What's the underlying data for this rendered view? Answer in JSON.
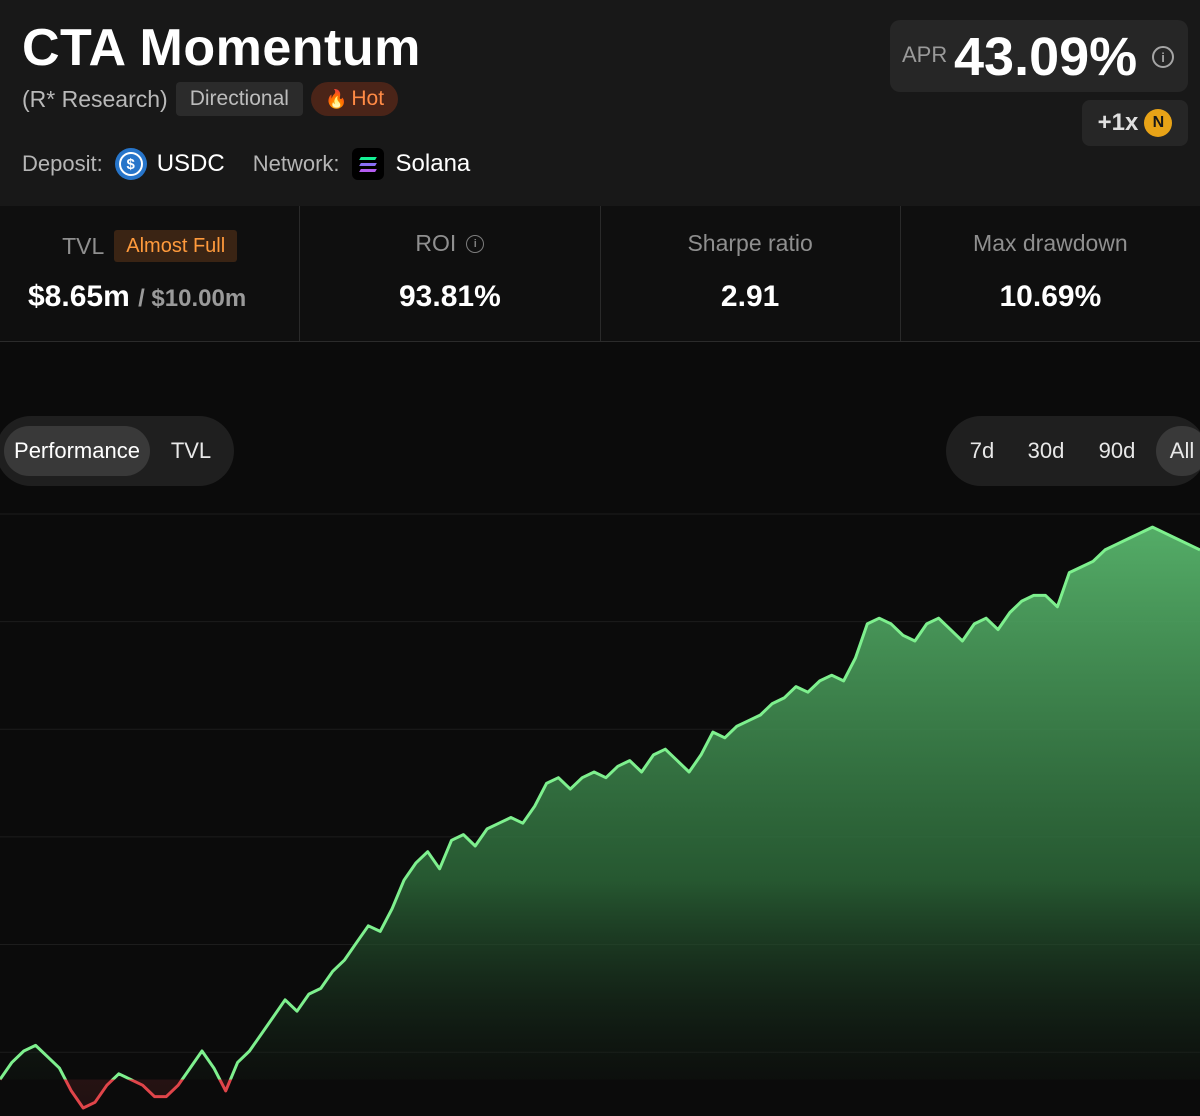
{
  "header": {
    "title": "CTA Momentum",
    "author": "(R* Research)",
    "tags": {
      "directional": "Directional",
      "hot": "Hot"
    },
    "deposit_label": "Deposit:",
    "deposit_token": "USDC",
    "network_label": "Network:",
    "network_name": "Solana"
  },
  "apr": {
    "label": "APR",
    "value": "43.09%",
    "boost": "+1x"
  },
  "stats": {
    "tvl_label": "TVL",
    "tvl_badge": "Almost Full",
    "tvl_value": "$8.65m",
    "tvl_cap": "/ $10.00m",
    "tvl_fill_fraction": 0.865,
    "roi_label": "ROI",
    "roi_value": "93.81%",
    "sharpe_label": "Sharpe ratio",
    "sharpe_value": "2.91",
    "drawdown_label": "Max drawdown",
    "drawdown_value": "10.69%"
  },
  "tabs": {
    "performance": "Performance",
    "tvl": "TVL",
    "active": "Performance"
  },
  "ranges": {
    "d7": "7d",
    "d30": "30d",
    "d90": "90d",
    "all": "All",
    "active": "All"
  },
  "colors": {
    "positive": "#7ef08e",
    "negative": "#e0454a",
    "hot": "#ff8a45",
    "badge": "#ff9a3c"
  },
  "chart_data": {
    "type": "area",
    "title": "",
    "xlabel": "",
    "ylabel": "",
    "grid": "horizontal",
    "baseline": 0,
    "ylim": [
      -5,
      100
    ],
    "series": [
      {
        "values": [
          0,
          3,
          5,
          6,
          4,
          2,
          -2,
          -5,
          -4,
          -1,
          1,
          0,
          -1,
          -3,
          -3,
          -1,
          2,
          5,
          2,
          -2,
          3,
          5,
          8,
          11,
          14,
          12,
          15,
          16,
          19,
          21,
          24,
          27,
          26,
          30,
          35,
          38,
          40,
          37,
          42,
          43,
          41,
          44,
          45,
          46,
          45,
          48,
          52,
          53,
          51,
          53,
          54,
          53,
          55,
          56,
          54,
          57,
          58,
          56,
          54,
          57,
          61,
          60,
          62,
          63,
          64,
          66,
          67,
          69,
          68,
          70,
          71,
          70,
          74,
          80,
          81,
          80,
          78,
          77,
          80,
          81,
          79,
          77,
          80,
          81,
          79,
          82,
          84,
          85,
          85,
          83,
          89,
          90,
          91,
          93,
          94,
          95,
          96,
          97,
          96,
          95,
          94,
          93
        ]
      }
    ]
  }
}
